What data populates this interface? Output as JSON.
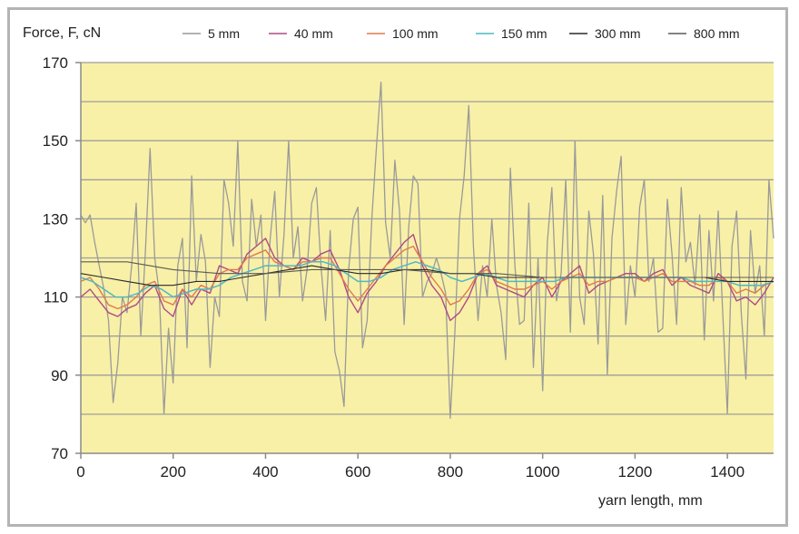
{
  "chart_data": {
    "type": "line",
    "ylabel": "Force, F, cN",
    "xlabel": "yarn length, mm",
    "xlim": [
      0,
      1500
    ],
    "ylim": [
      70,
      170
    ],
    "xticks": [
      0,
      200,
      400,
      600,
      800,
      1000,
      1200,
      1400
    ],
    "yticks": [
      70,
      90,
      110,
      130,
      150,
      170
    ],
    "grid_y_step": 10,
    "legend_position": "top",
    "plot_background": "#f8f0a6",
    "series": [
      {
        "name": "5 mm",
        "color": "#9a9a9a",
        "x": [
          0,
          10,
          20,
          30,
          40,
          50,
          60,
          70,
          80,
          90,
          100,
          110,
          120,
          130,
          140,
          150,
          160,
          170,
          180,
          190,
          200,
          210,
          220,
          230,
          240,
          250,
          260,
          270,
          280,
          290,
          300,
          310,
          320,
          330,
          340,
          350,
          360,
          370,
          380,
          390,
          400,
          410,
          420,
          430,
          440,
          450,
          460,
          470,
          480,
          490,
          500,
          510,
          520,
          530,
          540,
          550,
          560,
          570,
          580,
          590,
          600,
          610,
          620,
          630,
          640,
          650,
          660,
          670,
          680,
          690,
          700,
          710,
          720,
          730,
          740,
          750,
          760,
          770,
          780,
          790,
          800,
          810,
          820,
          830,
          840,
          850,
          860,
          870,
          880,
          890,
          900,
          910,
          920,
          930,
          940,
          950,
          960,
          970,
          980,
          990,
          1000,
          1010,
          1020,
          1030,
          1040,
          1050,
          1060,
          1070,
          1080,
          1090,
          1100,
          1110,
          1120,
          1130,
          1140,
          1150,
          1160,
          1170,
          1180,
          1190,
          1200,
          1210,
          1220,
          1230,
          1240,
          1250,
          1260,
          1270,
          1280,
          1290,
          1300,
          1310,
          1320,
          1330,
          1340,
          1350,
          1360,
          1370,
          1380,
          1390,
          1400,
          1410,
          1420,
          1430,
          1440,
          1450,
          1460,
          1470,
          1480,
          1490,
          1500
        ],
        "y": [
          131,
          129,
          131,
          124,
          118,
          112,
          104,
          83,
          93,
          110,
          106,
          118,
          134,
          100,
          122,
          148,
          120,
          111,
          80,
          102,
          88,
          118,
          125,
          97,
          141,
          114,
          126,
          119,
          92,
          110,
          105,
          140,
          134,
          123,
          150,
          114,
          109,
          135,
          123,
          131,
          104,
          125,
          137,
          110,
          126,
          150,
          120,
          128,
          109,
          117,
          134,
          138,
          118,
          104,
          127,
          96,
          91,
          82,
          117,
          130,
          133,
          97,
          104,
          130,
          148,
          165,
          129,
          120,
          145,
          132,
          103,
          128,
          141,
          139,
          110,
          114,
          116,
          120,
          116,
          111,
          79,
          101,
          130,
          141,
          159,
          123,
          104,
          118,
          110,
          130,
          113,
          106,
          94,
          143,
          118,
          103,
          104,
          134,
          92,
          120,
          86,
          124,
          138,
          109,
          116,
          140,
          101,
          150,
          110,
          103,
          132,
          121,
          98,
          136,
          90,
          125,
          137,
          146,
          103,
          118,
          110,
          133,
          140,
          114,
          120,
          101,
          102,
          135,
          121,
          103,
          138,
          119,
          124,
          113,
          131,
          99,
          127,
          109,
          132,
          106,
          80,
          123,
          132,
          106,
          89,
          127,
          111,
          118,
          100,
          140,
          125
        ]
      },
      {
        "name": "40 mm",
        "color": "#b04a86",
        "x": [
          0,
          20,
          40,
          60,
          80,
          100,
          120,
          140,
          160,
          180,
          200,
          220,
          240,
          260,
          280,
          300,
          320,
          340,
          360,
          380,
          400,
          420,
          440,
          460,
          480,
          500,
          520,
          540,
          560,
          580,
          600,
          620,
          640,
          660,
          680,
          700,
          720,
          740,
          760,
          780,
          800,
          820,
          840,
          860,
          880,
          900,
          920,
          940,
          960,
          980,
          1000,
          1020,
          1040,
          1060,
          1080,
          1100,
          1120,
          1140,
          1160,
          1180,
          1200,
          1220,
          1240,
          1260,
          1280,
          1300,
          1320,
          1340,
          1360,
          1380,
          1400,
          1420,
          1440,
          1460,
          1480,
          1500
        ],
        "y": [
          110,
          112,
          109,
          106,
          105,
          107,
          108,
          111,
          113,
          107,
          105,
          112,
          108,
          112,
          111,
          118,
          117,
          116,
          121,
          123,
          125,
          120,
          118,
          117,
          120,
          119,
          121,
          122,
          117,
          110,
          106,
          111,
          114,
          118,
          121,
          124,
          126,
          118,
          113,
          110,
          104,
          106,
          110,
          116,
          118,
          113,
          112,
          111,
          110,
          113,
          115,
          110,
          114,
          116,
          118,
          111,
          113,
          114,
          115,
          116,
          116,
          114,
          116,
          117,
          113,
          115,
          113,
          112,
          111,
          116,
          114,
          109,
          110,
          108,
          111,
          115
        ]
      },
      {
        "name": "100 mm",
        "color": "#e07a4e",
        "x": [
          0,
          20,
          40,
          60,
          80,
          100,
          120,
          140,
          160,
          180,
          200,
          220,
          240,
          260,
          280,
          300,
          320,
          340,
          360,
          380,
          400,
          420,
          440,
          460,
          480,
          500,
          520,
          540,
          560,
          580,
          600,
          620,
          640,
          660,
          680,
          700,
          720,
          740,
          760,
          780,
          800,
          820,
          840,
          860,
          880,
          900,
          920,
          940,
          960,
          980,
          1000,
          1020,
          1040,
          1060,
          1080,
          1100,
          1120,
          1140,
          1160,
          1180,
          1200,
          1220,
          1240,
          1260,
          1280,
          1300,
          1320,
          1340,
          1360,
          1380,
          1400,
          1420,
          1440,
          1460,
          1480,
          1500
        ],
        "y": [
          114,
          115,
          112,
          108,
          107,
          108,
          110,
          113,
          114,
          109,
          108,
          112,
          110,
          113,
          112,
          116,
          117,
          117,
          120,
          121,
          122,
          119,
          118,
          117,
          119,
          119,
          120,
          120,
          116,
          112,
          109,
          112,
          115,
          118,
          120,
          122,
          123,
          119,
          115,
          112,
          108,
          109,
          112,
          116,
          117,
          114,
          113,
          112,
          112,
          113,
          114,
          112,
          114,
          115,
          116,
          113,
          114,
          114,
          115,
          115,
          115,
          114,
          115,
          116,
          114,
          114,
          114,
          113,
          113,
          115,
          114,
          111,
          112,
          111,
          113,
          114
        ]
      },
      {
        "name": "150 mm",
        "color": "#4fb8c4",
        "x": [
          0,
          25,
          50,
          75,
          100,
          125,
          150,
          175,
          200,
          225,
          250,
          275,
          300,
          325,
          350,
          375,
          400,
          425,
          450,
          475,
          500,
          525,
          550,
          575,
          600,
          625,
          650,
          675,
          700,
          725,
          750,
          775,
          800,
          825,
          850,
          875,
          900,
          925,
          950,
          975,
          1000,
          1025,
          1050,
          1075,
          1100,
          1125,
          1150,
          1175,
          1200,
          1225,
          1250,
          1275,
          1300,
          1325,
          1350,
          1375,
          1400,
          1425,
          1450,
          1475,
          1500
        ],
        "y": [
          115,
          114,
          112,
          110,
          110,
          111,
          113,
          112,
          110,
          111,
          112,
          112,
          113,
          115,
          116,
          117,
          118,
          118,
          118,
          118,
          119,
          119,
          118,
          116,
          114,
          114,
          115,
          117,
          118,
          119,
          118,
          117,
          115,
          114,
          115,
          116,
          115,
          114,
          114,
          114,
          114,
          114,
          115,
          115,
          115,
          115,
          115,
          115,
          115,
          115,
          115,
          115,
          115,
          114,
          114,
          114,
          114,
          113,
          113,
          113,
          114
        ]
      },
      {
        "name": "300 mm",
        "color": "#2a2a2a",
        "x": [
          0,
          50,
          100,
          150,
          200,
          250,
          300,
          350,
          400,
          450,
          500,
          550,
          600,
          650,
          700,
          750,
          800,
          850,
          900,
          950,
          1000,
          1050,
          1100,
          1150,
          1200,
          1250,
          1300,
          1350,
          1400,
          1450,
          1500
        ],
        "y": [
          116,
          115,
          114,
          113,
          113,
          114,
          114,
          115,
          116,
          117,
          118,
          117,
          116,
          116,
          117,
          117,
          116,
          116,
          115,
          115,
          115,
          115,
          115,
          115,
          115,
          115,
          115,
          115,
          114,
          114,
          114
        ]
      },
      {
        "name": "800 mm",
        "color": "#5a5a5a",
        "x": [
          0,
          100,
          200,
          300,
          400,
          500,
          600,
          700,
          800,
          900,
          1000,
          1100,
          1200,
          1300,
          1400,
          1500
        ],
        "y": [
          119,
          119,
          117,
          116,
          116,
          117,
          117,
          117,
          116,
          116,
          115,
          115,
          115,
          115,
          115,
          115
        ]
      }
    ]
  }
}
